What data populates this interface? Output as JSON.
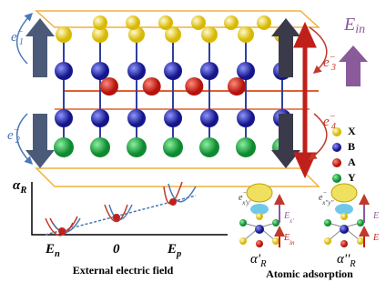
{
  "top_panel": {
    "e1": {
      "base": "e",
      "sup": "−",
      "sub": "1"
    },
    "e2": {
      "base": "e",
      "sup": "−",
      "sub": "2"
    },
    "e3": {
      "base": "e",
      "sup": "−",
      "sub": "3"
    },
    "e4": {
      "base": "e",
      "sup": "−",
      "sub": "4"
    },
    "field": {
      "base": "E",
      "sub": "in"
    },
    "legend": [
      "X",
      "B",
      "A",
      "Y"
    ]
  },
  "field_panel": {
    "y_label": {
      "base": "α",
      "sub": "R"
    },
    "ticks": [
      {
        "base": "E",
        "sub": "n"
      },
      {
        "base": "0"
      },
      {
        "base": "E",
        "sub": "p"
      }
    ],
    "x_label": "External electric field"
  },
  "adsorption_panel": {
    "left": {
      "electron": {
        "base": "e",
        "sup": "−",
        "sub": "x'y'"
      },
      "field_a": {
        "base": "E",
        "sub": "x'"
      },
      "field_b": {
        "base": "E",
        "sub": "in"
      },
      "alpha": {
        "base": "α'",
        "sub": "R"
      }
    },
    "right": {
      "electron": {
        "base": "e",
        "sup": "−",
        "sub": "x''y''"
      },
      "field_a": {
        "base": "E"
      },
      "field_b": {
        "base": "E"
      },
      "alpha": {
        "base": "α''",
        "sub": "R"
      }
    },
    "title": "Atomic adsorption"
  }
}
